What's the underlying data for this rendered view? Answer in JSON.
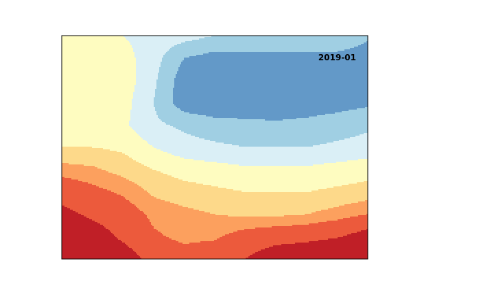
{
  "chart_data": {
    "type": "heatmap",
    "subtype": "filled-contour",
    "title": "",
    "xlabel": "",
    "ylabel": "",
    "axes_visible": false,
    "grid": false,
    "colormap": "RdYlBu_r",
    "level_colors": [
      "#3a5aa8",
      "#6399c8",
      "#a0cfe3",
      "#daeff6",
      "#fefcc0",
      "#fdd98a",
      "#fca05e",
      "#ec5a3c",
      "#c01f27"
    ],
    "annotation": {
      "text": "2019-01",
      "position": "top-right"
    },
    "x": [
      0,
      1,
      2,
      3,
      4,
      5,
      6,
      7,
      8,
      9,
      10
    ],
    "y": [
      0,
      1,
      2,
      3,
      4,
      5,
      6,
      7,
      8,
      9,
      10
    ],
    "z": [
      [
        2.8,
        2.7,
        2.5,
        2.3,
        2.2,
        2.0,
        2.0,
        2.0,
        2.0,
        2.0,
        1.6
      ],
      [
        2.8,
        2.8,
        2.7,
        2.2,
        1.5,
        1.3,
        1.3,
        1.3,
        1.3,
        1.3,
        1.2
      ],
      [
        2.9,
        2.9,
        2.8,
        2.1,
        1.2,
        1.2,
        1.2,
        1.2,
        1.2,
        1.2,
        1.25
      ],
      [
        2.9,
        2.9,
        2.7,
        2.0,
        1.2,
        1.1,
        1.1,
        1.1,
        1.2,
        1.3,
        1.4
      ],
      [
        2.9,
        2.9,
        2.6,
        2.1,
        1.9,
        1.7,
        1.65,
        1.6,
        1.65,
        1.75,
        1.9
      ],
      [
        3.0,
        3.0,
        2.9,
        2.5,
        2.2,
        2.1,
        2.0,
        2.0,
        2.0,
        2.1,
        2.2
      ],
      [
        3.7,
        3.6,
        3.3,
        3.0,
        2.8,
        2.7,
        2.6,
        2.6,
        2.6,
        2.7,
        2.8
      ],
      [
        4.6,
        4.2,
        3.9,
        3.4,
        3.2,
        3.1,
        3.0,
        3.0,
        3.0,
        3.1,
        3.2
      ],
      [
        5.3,
        4.8,
        4.4,
        3.85,
        3.65,
        3.5,
        3.4,
        3.4,
        3.5,
        3.7,
        4.0
      ],
      [
        6.2,
        5.6,
        4.8,
        4.1,
        3.85,
        3.9,
        4.3,
        4.5,
        4.6,
        4.9,
        5.5
      ],
      [
        7.2,
        6.4,
        5.6,
        4.6,
        4.3,
        4.5,
        5.0,
        5.8,
        6.2,
        6.7,
        7.6
      ]
    ],
    "levels": [
      0.5,
      1.0,
      1.5,
      2.0,
      2.5,
      3.0,
      3.5,
      4.0,
      5.0,
      8.0
    ]
  }
}
